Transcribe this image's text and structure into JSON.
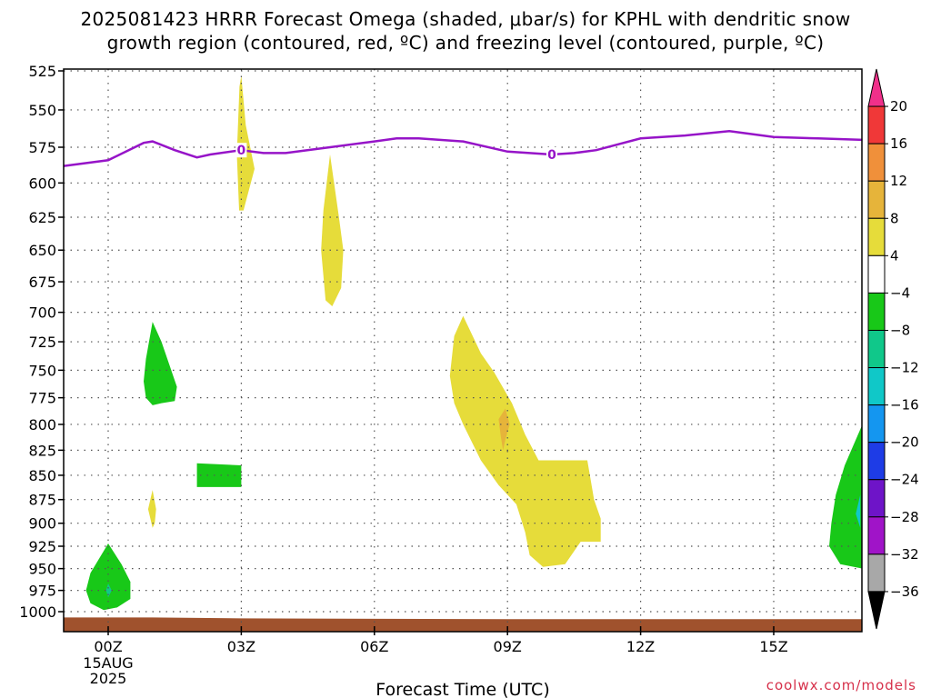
{
  "title": {
    "line1": "2025081423 HRRR Forecast Omega (shaded, μbar/s) for KPHL with dendritic snow",
    "line2": "growth region (contoured, red, ºC) and freezing level (contoured, purple, ºC)"
  },
  "credit": "coolwx.com/models",
  "chart_data": {
    "type": "contour",
    "xlabel": "Forecast Time (UTC)",
    "x_ticks": [
      {
        "hour": 0,
        "label": "00Z",
        "sub": [
          "15AUG",
          "2025"
        ]
      },
      {
        "hour": 3,
        "label": "03Z",
        "sub": []
      },
      {
        "hour": 6,
        "label": "06Z",
        "sub": []
      },
      {
        "hour": 9,
        "label": "09Z",
        "sub": []
      },
      {
        "hour": 12,
        "label": "12Z",
        "sub": []
      },
      {
        "hour": 15,
        "label": "15Z",
        "sub": []
      }
    ],
    "xlim": [
      -1,
      17
    ],
    "ylim": [
      1010,
      520
    ],
    "y_ticks": [
      525,
      550,
      575,
      600,
      625,
      650,
      675,
      700,
      725,
      750,
      775,
      800,
      825,
      850,
      875,
      900,
      925,
      950,
      975,
      1000
    ],
    "grid": true,
    "colorbar": {
      "labels": [
        "20",
        "16",
        "12",
        "8",
        "4",
        "-4",
        "-8",
        "-12",
        "-16",
        "-20",
        "-24",
        "-28",
        "-32",
        "-36"
      ],
      "bins": [
        {
          "color": "#f0308a"
        },
        {
          "color": "#f03838"
        },
        {
          "color": "#f0903a"
        },
        {
          "color": "#e6b43a"
        },
        {
          "color": "#e6dc3a"
        },
        {
          "color": "#ffffff"
        },
        {
          "color": "#18c818"
        },
        {
          "color": "#10c88a"
        },
        {
          "color": "#10c8c8"
        },
        {
          "color": "#1496f0"
        },
        {
          "color": "#1e3ce6"
        },
        {
          "color": "#6e14c8"
        },
        {
          "color": "#a014c8"
        },
        {
          "color": "#a8a8a8"
        },
        {
          "color": "#000000"
        }
      ]
    },
    "freezing_level": {
      "color": "#9614c8",
      "label": "0",
      "label_hours": [
        3,
        10
      ],
      "points": [
        [
          -1,
          588
        ],
        [
          0,
          584
        ],
        [
          0.8,
          572
        ],
        [
          1,
          571
        ],
        [
          1.5,
          577
        ],
        [
          2,
          582
        ],
        [
          2.3,
          580
        ],
        [
          3,
          577
        ],
        [
          3.5,
          579
        ],
        [
          4,
          579
        ],
        [
          5,
          575
        ],
        [
          6,
          571
        ],
        [
          6.5,
          569
        ],
        [
          7,
          569
        ],
        [
          8,
          571
        ],
        [
          9,
          578
        ],
        [
          9.5,
          579
        ],
        [
          10,
          580
        ],
        [
          10.5,
          579
        ],
        [
          11,
          577
        ],
        [
          12,
          569
        ],
        [
          13,
          567
        ],
        [
          14,
          564
        ],
        [
          15,
          568
        ],
        [
          16,
          569
        ],
        [
          17,
          570
        ]
      ]
    },
    "omega_regions": [
      {
        "color": "#e6dc3a",
        "points": [
          [
            2.95,
            620
          ],
          [
            2.9,
            580
          ],
          [
            2.96,
            535
          ],
          [
            3.0,
            528
          ],
          [
            3.1,
            560
          ],
          [
            3.3,
            590
          ],
          [
            3.05,
            620
          ]
        ]
      },
      {
        "color": "#e6dc3a",
        "points": [
          [
            4.9,
            690
          ],
          [
            4.8,
            650
          ],
          [
            4.85,
            620
          ],
          [
            5.0,
            580
          ],
          [
            5.2,
            625
          ],
          [
            5.3,
            650
          ],
          [
            5.25,
            680
          ],
          [
            5.05,
            695
          ]
        ]
      },
      {
        "color": "#e6dc3a",
        "points": [
          [
            0.95,
            895
          ],
          [
            0.9,
            885
          ],
          [
            1.0,
            865
          ],
          [
            1.08,
            885
          ],
          [
            1.05,
            900
          ],
          [
            1.0,
            905
          ]
        ]
      },
      {
        "color": "#e6dc3a",
        "points": [
          [
            7.7,
            755
          ],
          [
            7.8,
            720
          ],
          [
            8.0,
            703
          ],
          [
            8.4,
            735
          ],
          [
            8.7,
            752
          ],
          [
            9.1,
            780
          ],
          [
            9.4,
            810
          ],
          [
            9.7,
            835
          ],
          [
            10.8,
            835
          ],
          [
            10.95,
            875
          ],
          [
            11.1,
            895
          ],
          [
            11.1,
            920
          ],
          [
            10.65,
            920
          ],
          [
            10.3,
            945
          ],
          [
            9.8,
            948
          ],
          [
            9.5,
            935
          ],
          [
            9.4,
            910
          ],
          [
            9.2,
            880
          ],
          [
            8.8,
            860
          ],
          [
            8.4,
            835
          ],
          [
            8.0,
            800
          ],
          [
            7.8,
            780
          ]
        ]
      },
      {
        "color": "#e6b43a",
        "points": [
          [
            8.9,
            825
          ],
          [
            8.85,
            812
          ],
          [
            8.8,
            795
          ],
          [
            8.95,
            785
          ],
          [
            9.05,
            800
          ],
          [
            8.95,
            815
          ]
        ]
      },
      {
        "color": "#18c818",
        "points": [
          [
            0.8,
            760
          ],
          [
            0.85,
            740
          ],
          [
            1.0,
            708
          ],
          [
            1.2,
            725
          ],
          [
            1.55,
            765
          ],
          [
            1.5,
            778
          ],
          [
            1.2,
            780
          ],
          [
            1.0,
            782
          ],
          [
            0.85,
            775
          ]
        ]
      },
      {
        "color": "#18c818",
        "points": [
          [
            2.0,
            838
          ],
          [
            3.0,
            840
          ],
          [
            3.0,
            862
          ],
          [
            2.0,
            862
          ]
        ]
      },
      {
        "color": "#18c818",
        "points": [
          [
            -0.5,
            975
          ],
          [
            -0.4,
            955
          ],
          [
            0,
            922
          ],
          [
            0.3,
            945
          ],
          [
            0.5,
            965
          ],
          [
            0.5,
            985
          ],
          [
            0.2,
            995
          ],
          [
            -0.1,
            998
          ],
          [
            -0.4,
            990
          ]
        ]
      },
      {
        "color": "#10c88a",
        "points": [
          [
            -0.05,
            975
          ],
          [
            0,
            967
          ],
          [
            0.08,
            975
          ],
          [
            0,
            983
          ]
        ]
      },
      {
        "color": "#18c818",
        "points": [
          [
            17.0,
            800
          ],
          [
            16.6,
            840
          ],
          [
            16.4,
            870
          ],
          [
            16.3,
            900
          ],
          [
            16.25,
            925
          ],
          [
            16.5,
            945
          ],
          [
            17.0,
            950
          ]
        ]
      },
      {
        "color": "#10c8c8",
        "points": [
          [
            16.95,
            870
          ],
          [
            16.85,
            890
          ],
          [
            16.95,
            905
          ]
        ]
      }
    ],
    "terrain": {
      "color": "#a0522d",
      "points": [
        [
          -1,
          1010
        ],
        [
          -1,
          1007
        ],
        [
          1,
          1007
        ],
        [
          3,
          1008
        ],
        [
          9,
          1009
        ],
        [
          17,
          1009
        ],
        [
          17,
          1010
        ]
      ]
    }
  }
}
